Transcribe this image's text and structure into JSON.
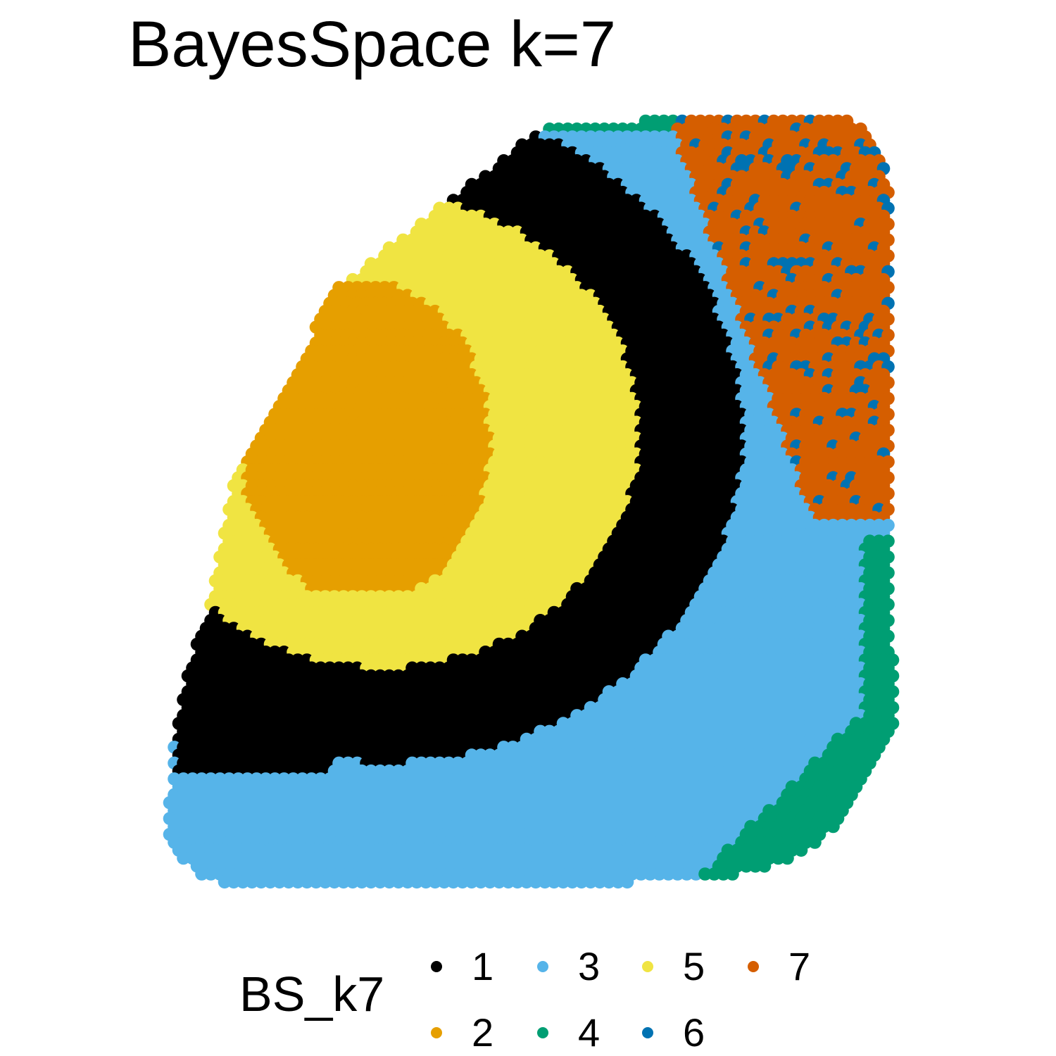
{
  "chart_data": {
    "type": "scatter",
    "title": "BayesSpace k=7",
    "xlabel": "",
    "ylabel": "",
    "grid": false,
    "axes_visible": false,
    "legend": {
      "title": "BS_k7",
      "placement": "bottom",
      "entries": [
        {
          "label": "1",
          "color": "#000000"
        },
        {
          "label": "2",
          "color": "#E69F00"
        },
        {
          "label": "3",
          "color": "#56B4E9"
        },
        {
          "label": "4",
          "color": "#009E73"
        },
        {
          "label": "5",
          "color": "#F0E442"
        },
        {
          "label": "6",
          "color": "#0072B2"
        },
        {
          "label": "7",
          "color": "#D55E00"
        }
      ]
    },
    "series": [
      {
        "name": "1",
        "color": "#000000",
        "region": "thick crescent arc from top-left corner sweeping right, down and back to lower-left"
      },
      {
        "name": "2",
        "color": "#E69F00",
        "region": "irregular patch at left-center inside the crescent"
      },
      {
        "name": "3",
        "color": "#56B4E9",
        "region": "broad band outside the crescent and along the bottom"
      },
      {
        "name": "4",
        "color": "#009E73",
        "region": "top edge strip, right edge and bottom-right corner"
      },
      {
        "name": "5",
        "color": "#F0E442",
        "region": "interior of the crescent"
      },
      {
        "name": "6",
        "color": "#0072B2",
        "region": "scattered spots within the top-right region"
      },
      {
        "name": "7",
        "color": "#D55E00",
        "region": "top-right corner block"
      }
    ]
  }
}
